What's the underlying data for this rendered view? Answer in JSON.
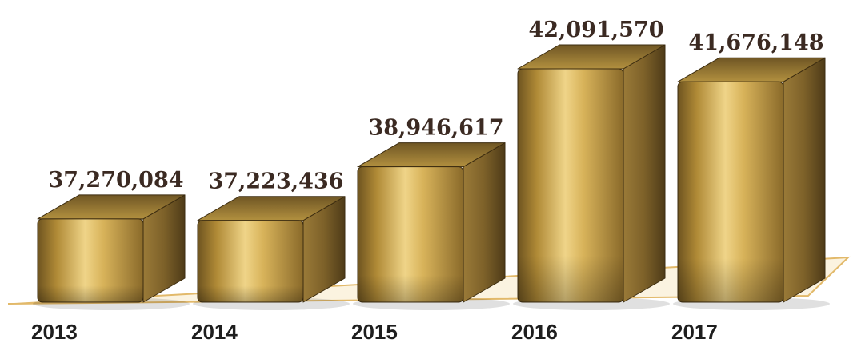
{
  "chart_data": {
    "type": "bar",
    "categories": [
      "2013",
      "2014",
      "2015",
      "2016",
      "2017"
    ],
    "values": [
      37270084,
      37223436,
      38946617,
      42091570,
      41676148
    ],
    "value_labels": [
      "37,270,084",
      "37,223,436",
      "38,946,617",
      "42,091,570",
      "41,676,148"
    ],
    "title": "",
    "xlabel": "",
    "ylabel": "",
    "grid": false,
    "legend": "none",
    "style": "3d-box",
    "colors": {
      "bar_front_dark": "#6e5420",
      "bar_front_mid": "#c9a043",
      "bar_front_light": "#efd488",
      "bar_top": "#9a7a34",
      "bar_side": "#6e5524",
      "floor_line": "#e2b96a",
      "value_text": "#3b2a22",
      "category_text": "#1e1e1e"
    }
  }
}
